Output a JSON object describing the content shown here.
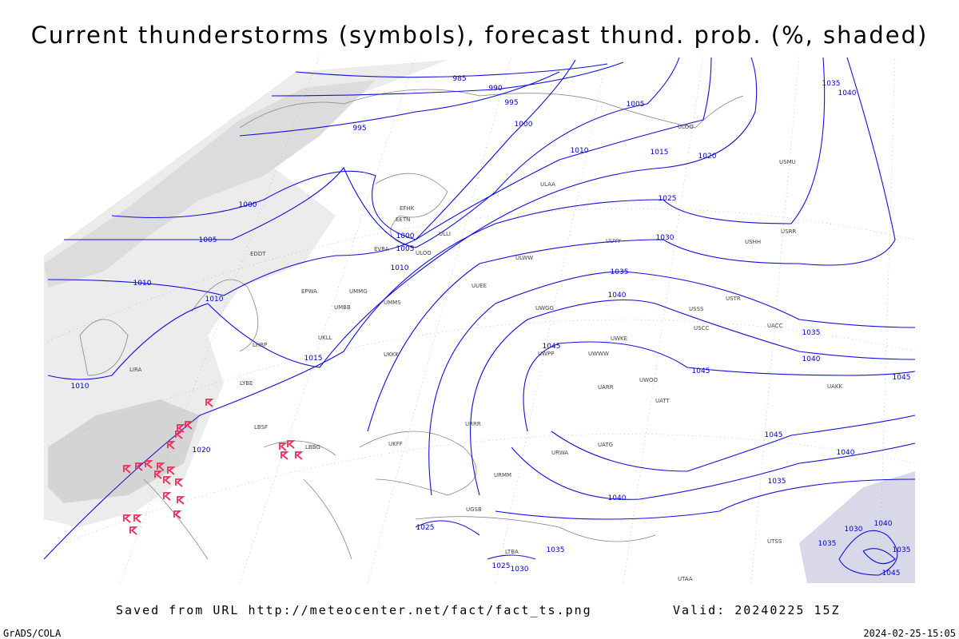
{
  "header": {
    "title": "Current thunderstorms (symbols), forecast thund. prob. (%, shaded)"
  },
  "footer": {
    "source": "Saved from URL http://meteocenter.net/fact/fact_ts.png",
    "valid": "Valid: 20240225 15Z",
    "credit": "GrADS/COLA",
    "timestamp": "2024-02-25-15:05"
  },
  "isobar_labels": [
    "985",
    "990",
    "995",
    "995",
    "1000",
    "1005",
    "1010",
    "1015",
    "1020",
    "1025",
    "1030",
    "1035",
    "1040",
    "1045",
    "1045",
    "1035",
    "1040",
    "1000",
    "1005",
    "1000",
    "1005",
    "1010",
    "1010",
    "1010",
    "1015",
    "1010",
    "1020",
    "1035",
    "1040",
    "1045",
    "1045",
    "1040",
    "1035",
    "1040",
    "1025",
    "1035",
    "1025",
    "1030",
    "1030",
    "1040",
    "1035",
    "1035",
    "1045"
  ],
  "station_labels": [
    "ULOO",
    "ULAA",
    "ULLI",
    "EFHK",
    "EETN",
    "EVRA",
    "ULOO",
    "EDDT",
    "EPWA",
    "UMMG",
    "UMMS",
    "UMBB",
    "UKLL",
    "UKKK",
    "LHBP",
    "LIRA",
    "LYBE",
    "LBSF",
    "LBBG",
    "UKFF",
    "URRR",
    "URWA",
    "UATG",
    "UATT",
    "UARR",
    "UWOO",
    "UWWW",
    "UWKE",
    "UWPP",
    "USSS",
    "USTR",
    "USCC",
    "UACC",
    "UAKK",
    "UTSS",
    "UTAA",
    "USHH",
    "USRR",
    "UUEE",
    "UUYY",
    "ULWW",
    "UWGG",
    "URMM",
    "UGSB",
    "LTBA",
    "USMU"
  ]
}
